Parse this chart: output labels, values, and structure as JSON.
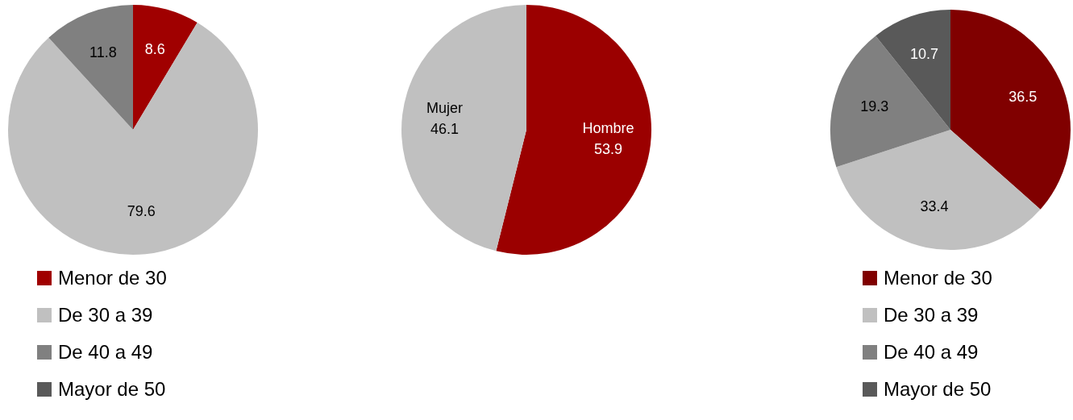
{
  "chart_data": [
    {
      "type": "pie",
      "categories": [
        "Menor de 30",
        "De 30 a 39",
        "De 40 a 49",
        "Mayor de 50"
      ],
      "values": [
        8.6,
        79.6,
        11.8,
        0
      ],
      "colors": [
        "#a00000",
        "#c0c0c0",
        "#808080",
        "#595959"
      ],
      "value_labels": [
        "8.6",
        "79.6",
        "11.8",
        null
      ],
      "legend": "bottom"
    },
    {
      "type": "pie",
      "categories": [
        "Hombre",
        "Mujer"
      ],
      "values": [
        53.9,
        46.1
      ],
      "colors": [
        "#9b0000",
        "#c0c0c0"
      ],
      "data_labels": true
    },
    {
      "type": "pie",
      "categories": [
        "Menor de 30",
        "De 30 a 39",
        "De 40 a 49",
        "Mayor de 50"
      ],
      "values": [
        36.5,
        33.4,
        19.3,
        10.7
      ],
      "colors": [
        "#800000",
        "#c0c0c0",
        "#808080",
        "#595959"
      ],
      "data_labels": true,
      "legend": "bottom"
    }
  ]
}
